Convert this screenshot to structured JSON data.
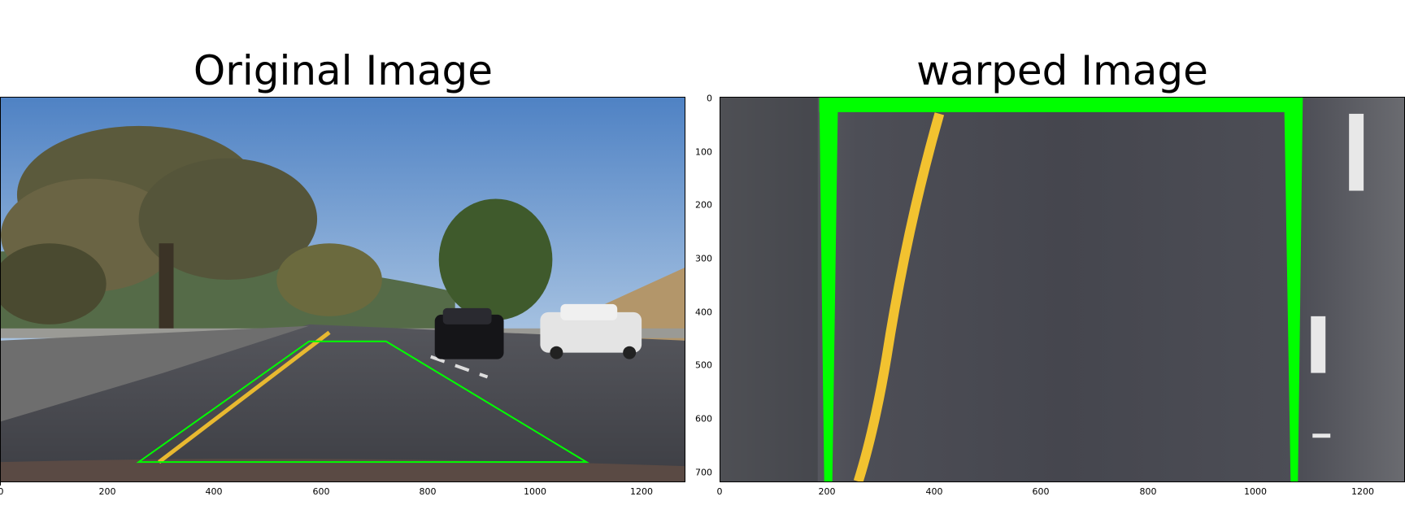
{
  "left_panel": {
    "title": "Original Image",
    "x_ticks": [
      "0",
      "200",
      "400",
      "600",
      "800",
      "1000",
      "1200"
    ]
  },
  "right_panel": {
    "title": "warped Image",
    "x_ticks": [
      "0",
      "200",
      "400",
      "600",
      "800",
      "1000",
      "1200"
    ],
    "y_ticks": [
      "0",
      "100",
      "200",
      "300",
      "400",
      "500",
      "600",
      "700"
    ]
  },
  "colors": {
    "sky": "#7ea6d2",
    "road": "#4a4b52",
    "lane_yellow": "#e8b930",
    "overlay_green": "#00ff00",
    "tree_dark": "#4a4a30"
  }
}
